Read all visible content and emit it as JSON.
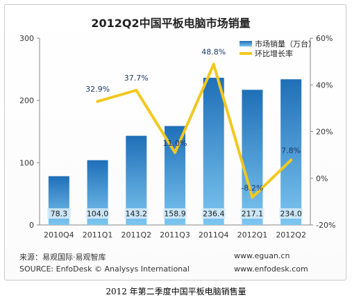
{
  "chart_data": {
    "type": "bar",
    "title": "2012Q2中国平板电脑市场销量",
    "categories": [
      "2010Q4",
      "2011Q1",
      "2011Q2",
      "2011Q3",
      "2011Q4",
      "2012Q1",
      "2012Q2"
    ],
    "series": [
      {
        "name": "市场销量（万台）",
        "type": "bar",
        "axis": "left",
        "values": [
          78.3,
          104.0,
          143.2,
          158.9,
          236.4,
          217.1,
          234.0
        ],
        "labels": [
          "78.3",
          "104.0",
          "143.2",
          "158.9",
          "236.4",
          "217.1",
          "234.0"
        ]
      },
      {
        "name": "环比增长率",
        "type": "line",
        "axis": "right",
        "values": [
          null,
          32.9,
          37.7,
          11.0,
          48.8,
          -8.2,
          7.8
        ],
        "labels": [
          "",
          "32.9%",
          "37.7%",
          "11.0%",
          "48.8%",
          "-8.2%",
          "7.8%"
        ]
      }
    ],
    "y_left": {
      "ylim": [
        0,
        300
      ],
      "ticks": [
        0,
        100,
        200,
        300
      ],
      "tick_labels": [
        "0",
        "100",
        "200",
        "300"
      ]
    },
    "y_right": {
      "ylim": [
        -20,
        60
      ],
      "ticks": [
        -20,
        0,
        20,
        40,
        60
      ],
      "tick_labels": [
        "-20%",
        "0%",
        "20%",
        "40%",
        "60%"
      ]
    },
    "grid": false,
    "legend_position": "top-right",
    "colors": {
      "bar_top": "#1f6fb8",
      "bar_bottom": "#7cc6f0",
      "line": "#f2c81e",
      "bar_label_bg": "#d9ecf8",
      "axis": "#888888"
    }
  },
  "source": {
    "cn": "来源：易观国际·易观智库",
    "en": "SOURCE: EnfoDesk © Analysys International",
    "url1": "www.eguan.cn",
    "url2": "www.enfodesk.com"
  },
  "caption": "2012 年第二季度中国平板电脑销售量"
}
